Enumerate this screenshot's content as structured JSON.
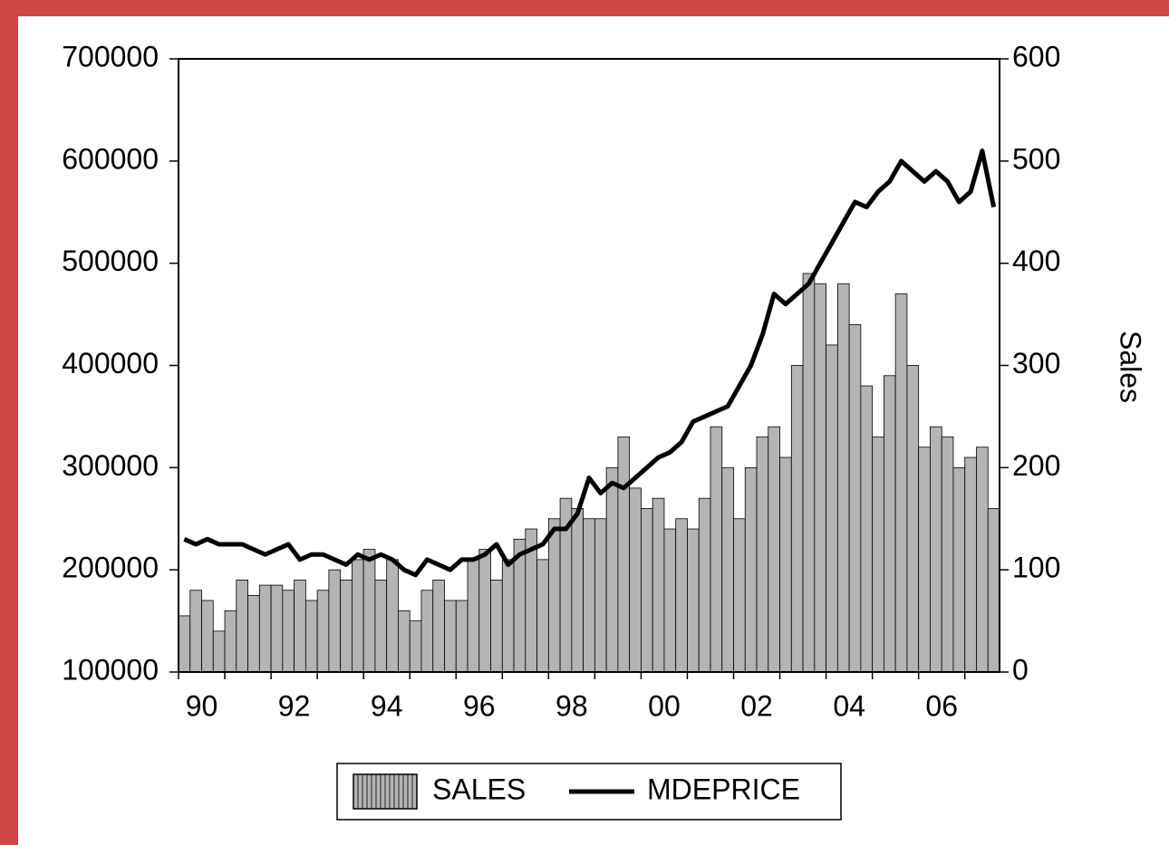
{
  "chart_data": {
    "type": "bar",
    "y2label": "Sales",
    "categories": [
      "90",
      null,
      null,
      null,
      null,
      null,
      null,
      null,
      "92",
      null,
      null,
      null,
      null,
      null,
      null,
      null,
      "94",
      null,
      null,
      null,
      null,
      null,
      null,
      null,
      "96",
      null,
      null,
      null,
      null,
      null,
      null,
      null,
      "98",
      null,
      null,
      null,
      null,
      null,
      null,
      null,
      "00",
      null,
      null,
      null,
      null,
      null,
      null,
      null,
      "02",
      null,
      null,
      null,
      null,
      null,
      null,
      null,
      "04",
      null,
      null,
      null,
      null,
      null,
      null,
      null,
      "06",
      null,
      null,
      null,
      null,
      null,
      null
    ],
    "series": [
      {
        "name": "SALES",
        "type": "bar",
        "axis": "y2",
        "color": "#b4b4b4",
        "values": [
          55,
          80,
          70,
          40,
          60,
          90,
          75,
          85,
          85,
          80,
          90,
          70,
          80,
          100,
          90,
          110,
          120,
          90,
          110,
          60,
          50,
          80,
          90,
          70,
          70,
          110,
          120,
          90,
          110,
          130,
          140,
          110,
          150,
          170,
          160,
          150,
          150,
          200,
          230,
          180,
          160,
          170,
          140,
          150,
          140,
          170,
          240,
          200,
          150,
          200,
          230,
          240,
          210,
          300,
          390,
          380,
          320,
          380,
          340,
          280,
          230,
          290,
          370,
          300,
          220,
          240,
          230,
          200,
          210,
          220,
          160
        ]
      },
      {
        "name": "MDEPRICE",
        "type": "line",
        "color": "#000000",
        "values": [
          230000,
          225000,
          230000,
          225000,
          225000,
          225000,
          220000,
          215000,
          220000,
          225000,
          210000,
          215000,
          215000,
          210000,
          205000,
          215000,
          210000,
          215000,
          210000,
          200000,
          195000,
          210000,
          205000,
          200000,
          210000,
          210000,
          215000,
          225000,
          205000,
          215000,
          220000,
          225000,
          240000,
          240000,
          255000,
          290000,
          275000,
          285000,
          280000,
          290000,
          300000,
          310000,
          315000,
          325000,
          345000,
          350000,
          355000,
          360000,
          380000,
          400000,
          430000,
          470000,
          460000,
          470000,
          480000,
          500000,
          520000,
          540000,
          560000,
          555000,
          570000,
          580000,
          600000,
          590000,
          580000,
          590000,
          580000,
          560000,
          570000,
          610000,
          555000
        ]
      }
    ],
    "ylim": [
      100000,
      700000
    ],
    "yticks": [
      100000,
      200000,
      300000,
      400000,
      500000,
      600000,
      700000
    ],
    "y2lim": [
      0,
      600
    ],
    "y2ticks": [
      0,
      100,
      200,
      300,
      400,
      500,
      600
    ],
    "legend": "bottom"
  }
}
